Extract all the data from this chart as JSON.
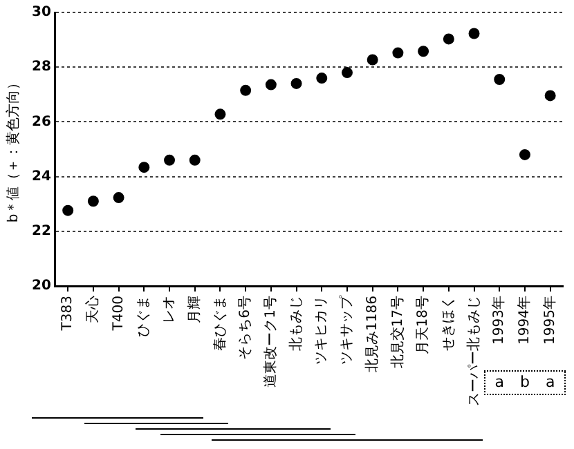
{
  "chart_data": {
    "type": "scatter",
    "ylabel": "b＊値（＋：黄色方向）",
    "categories": [
      "T383",
      "天心",
      "T400",
      "ひぐま",
      "レオ",
      "月輝",
      "春ひぐま",
      "そらち6号",
      "道東改ーク1号",
      "北もみじ",
      "ツキヒカリ",
      "ツキサップ",
      "北見み1186",
      "北見交17号",
      "月天18号",
      "せきほく",
      "スーパー北もみじ",
      "1993年",
      "1994年",
      "1995年"
    ],
    "series": [
      {
        "color": "#000000",
        "values": [
          22.76,
          23.1,
          23.23,
          24.34,
          24.6,
          24.6,
          26.28,
          27.15,
          27.36,
          27.4,
          27.6,
          27.8,
          28.27,
          28.52,
          28.58,
          29.03,
          29.23,
          27.55,
          24.8,
          26.96
        ]
      }
    ],
    "ylim": [
      20,
      30
    ],
    "yticks": [
      20,
      22,
      24,
      26,
      28,
      30
    ],
    "grid": "y",
    "marker": "circle",
    "legend": false,
    "annotations": [
      "a",
      "b",
      "a"
    ]
  }
}
